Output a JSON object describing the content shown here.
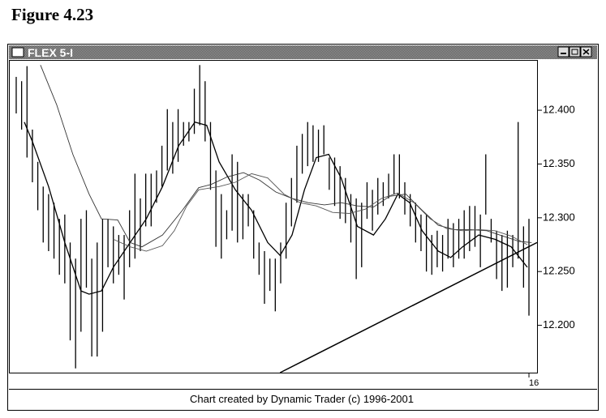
{
  "chart_data": {
    "type": "ohlc",
    "title": "Figure 4.23",
    "window_title": "FLEX 5-I",
    "footer": "Chart created by Dynamic Trader (c) 1996-2001",
    "color": "#000000",
    "ylim": [
      12.156,
      12.446
    ],
    "yticks": [
      {
        "value": 12.2,
        "label": "12.200"
      },
      {
        "value": 12.25,
        "label": "12.250"
      },
      {
        "value": 12.3,
        "label": "12.300"
      },
      {
        "value": 12.35,
        "label": "12.350"
      },
      {
        "value": 12.4,
        "label": "12.400"
      }
    ],
    "xlim": [
      -1.2,
      96.5
    ],
    "xticks": [
      {
        "value": 95,
        "label": "16"
      }
    ],
    "bars": [
      [
        12.431,
        12.397
      ],
      [
        12.427,
        12.382
      ],
      [
        12.441,
        12.356
      ],
      [
        12.382,
        12.333
      ],
      [
        12.352,
        12.307
      ],
      [
        12.329,
        12.277
      ],
      [
        12.322,
        12.269
      ],
      [
        12.314,
        12.262
      ],
      [
        12.299,
        12.247
      ],
      [
        12.303,
        12.239
      ],
      [
        12.277,
        12.186
      ],
      [
        12.262,
        12.16
      ],
      [
        12.299,
        12.194
      ],
      [
        12.307,
        12.235
      ],
      [
        12.262,
        12.171
      ],
      [
        12.277,
        12.171
      ],
      [
        12.299,
        12.194
      ],
      [
        12.299,
        12.254
      ],
      [
        12.292,
        12.239
      ],
      [
        12.284,
        12.247
      ],
      [
        12.284,
        12.224
      ],
      [
        12.307,
        12.254
      ],
      [
        12.341,
        12.262
      ],
      [
        12.318,
        12.269
      ],
      [
        12.341,
        12.292
      ],
      [
        12.341,
        12.292
      ],
      [
        12.344,
        12.314
      ],
      [
        12.367,
        12.329
      ],
      [
        12.401,
        12.344
      ],
      [
        12.389,
        12.341
      ],
      [
        12.401,
        12.352
      ],
      [
        12.389,
        12.367
      ],
      [
        12.389,
        12.371
      ],
      [
        12.42,
        12.378
      ],
      [
        12.442,
        12.386
      ],
      [
        12.427,
        12.371
      ],
      [
        12.389,
        12.326
      ],
      [
        12.344,
        12.273
      ],
      [
        12.322,
        12.262
      ],
      [
        12.307,
        12.28
      ],
      [
        12.359,
        12.288
      ],
      [
        12.352,
        12.277
      ],
      [
        12.322,
        12.28
      ],
      [
        12.322,
        12.292
      ],
      [
        12.307,
        12.262
      ],
      [
        12.277,
        12.247
      ],
      [
        12.269,
        12.22
      ],
      [
        12.262,
        12.232
      ],
      [
        12.262,
        12.213
      ],
      [
        12.277,
        12.239
      ],
      [
        12.314,
        12.262
      ],
      [
        12.337,
        12.292
      ],
      [
        12.367,
        12.314
      ],
      [
        12.378,
        12.341
      ],
      [
        12.389,
        12.348
      ],
      [
        12.386,
        12.352
      ],
      [
        12.382,
        12.352
      ],
      [
        12.386,
        12.359
      ],
      [
        12.356,
        12.326
      ],
      [
        12.356,
        12.311
      ],
      [
        12.348,
        12.299
      ],
      [
        12.337,
        12.295
      ],
      [
        12.322,
        12.277
      ],
      [
        12.318,
        12.243
      ],
      [
        12.314,
        12.254
      ],
      [
        12.333,
        12.299
      ],
      [
        12.326,
        12.288
      ],
      [
        12.337,
        12.303
      ],
      [
        12.333,
        12.311
      ],
      [
        12.341,
        12.318
      ],
      [
        12.359,
        12.322
      ],
      [
        12.359,
        12.318
      ],
      [
        12.333,
        12.303
      ],
      [
        12.322,
        12.292
      ],
      [
        12.314,
        12.277
      ],
      [
        12.303,
        12.269
      ],
      [
        12.303,
        12.25
      ],
      [
        12.284,
        12.247
      ],
      [
        12.288,
        12.254
      ],
      [
        12.284,
        12.25
      ],
      [
        12.299,
        12.262
      ],
      [
        12.295,
        12.254
      ],
      [
        12.299,
        12.262
      ],
      [
        12.307,
        12.262
      ],
      [
        12.311,
        12.269
      ],
      [
        12.311,
        12.273
      ],
      [
        12.303,
        12.254
      ],
      [
        12.359,
        12.303
      ],
      [
        12.299,
        12.277
      ],
      [
        12.288,
        12.243
      ],
      [
        12.284,
        12.232
      ],
      [
        12.288,
        12.235
      ],
      [
        12.284,
        12.254
      ],
      [
        12.389,
        12.262
      ],
      [
        12.292,
        12.235
      ],
      [
        12.299,
        12.209
      ]
    ],
    "lines": [
      {
        "color": "#000000",
        "x": [
          1.5,
          3,
          6,
          9,
          12,
          13.5,
          15.8,
          18,
          21.1,
          24.1,
          27.1,
          30.1,
          33.1,
          35.3,
          37.6,
          40.6,
          43.6,
          46.6,
          48.9,
          51.1,
          53.4,
          55.6,
          57.9,
          60.2,
          63.2,
          66.2,
          68.4,
          70.7,
          72.9,
          75.2,
          78.2,
          80.5,
          82.7,
          85.7,
          88.7,
          91.7,
          94.7
        ],
        "y": [
          12.389,
          12.371,
          12.329,
          12.277,
          12.232,
          12.229,
          12.232,
          12.254,
          12.277,
          12.299,
          12.329,
          12.367,
          12.389,
          12.386,
          12.352,
          12.326,
          12.307,
          12.277,
          12.265,
          12.284,
          12.326,
          12.356,
          12.359,
          12.337,
          12.292,
          12.284,
          12.299,
          12.322,
          12.314,
          12.288,
          12.269,
          12.263,
          12.273,
          12.284,
          12.28,
          12.273,
          12.254
        ]
      },
      {
        "color": "#333333",
        "x": [
          4.5,
          7.5,
          10.5,
          13.5,
          15.8,
          18.8,
          21.1,
          23.3,
          27.1,
          30.8,
          33.8,
          36.1,
          39.1,
          42.1,
          45.1,
          48.1,
          51.1,
          54.1,
          57.1,
          60.2,
          63.2,
          66.2,
          69.2,
          72.2,
          75.2,
          78.2,
          81.2,
          84.2,
          87.2,
          90.2,
          93.2,
          95.5
        ],
        "y": [
          12.442,
          12.405,
          12.359,
          12.322,
          12.299,
          12.298,
          12.277,
          12.273,
          12.284,
          12.307,
          12.328,
          12.331,
          12.338,
          12.342,
          12.335,
          12.324,
          12.318,
          12.314,
          12.312,
          12.314,
          12.311,
          12.31,
          12.32,
          12.322,
          12.307,
          12.293,
          12.289,
          12.289,
          12.288,
          12.283,
          12.278,
          12.277
        ]
      },
      {
        "color": "#555555",
        "x": [
          18,
          21.1,
          24.1,
          27.1,
          29.3,
          31.6,
          33.8,
          37.6,
          40.6,
          43.6,
          46.6,
          49.6,
          52.6,
          55.6,
          58.6,
          61.7,
          64.7,
          67.7,
          70.7,
          73.7,
          76.7,
          79.7,
          82.7,
          85.7,
          88.7,
          91.7,
          94.7
        ],
        "y": [
          12.28,
          12.273,
          12.269,
          12.274,
          12.288,
          12.311,
          12.326,
          12.329,
          12.333,
          12.341,
          12.337,
          12.322,
          12.314,
          12.311,
          12.305,
          12.304,
          12.308,
          12.318,
          12.323,
          12.314,
          12.299,
          12.29,
          12.288,
          12.289,
          12.288,
          12.283,
          12.275
        ]
      }
    ],
    "trendline": {
      "x": [
        48.9,
        96.5
      ],
      "y": [
        12.156,
        12.277
      ]
    }
  }
}
